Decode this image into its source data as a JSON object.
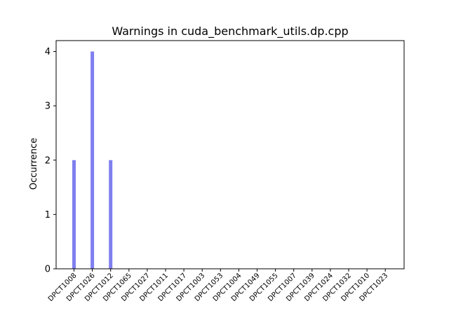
{
  "chart_data": {
    "type": "bar",
    "title": "Warnings in cuda_benchmark_utils.dp.cpp",
    "xlabel": "",
    "ylabel": "Occurrence",
    "categories": [
      "DPCT1008",
      "DPCT1026",
      "DPCT1012",
      "DPCT1065",
      "DPCT1027",
      "DPCT1011",
      "DPCT1017",
      "DPCT1003",
      "DPCT1053",
      "DPCT1004",
      "DPCT1049",
      "DPCT1055",
      "DPCT1007",
      "DPCT1039",
      "DPCT1024",
      "DPCT1032",
      "DPCT1010",
      "DPCT1023"
    ],
    "values": [
      2,
      4,
      2,
      0,
      0,
      0,
      0,
      0,
      0,
      0,
      0,
      0,
      0,
      0,
      0,
      0,
      0,
      0
    ],
    "ylim": [
      0,
      4.2
    ],
    "yticks": [
      0,
      1,
      2,
      3,
      4
    ],
    "bar_color": "#7f7fee",
    "grid": false,
    "legend": "none"
  }
}
